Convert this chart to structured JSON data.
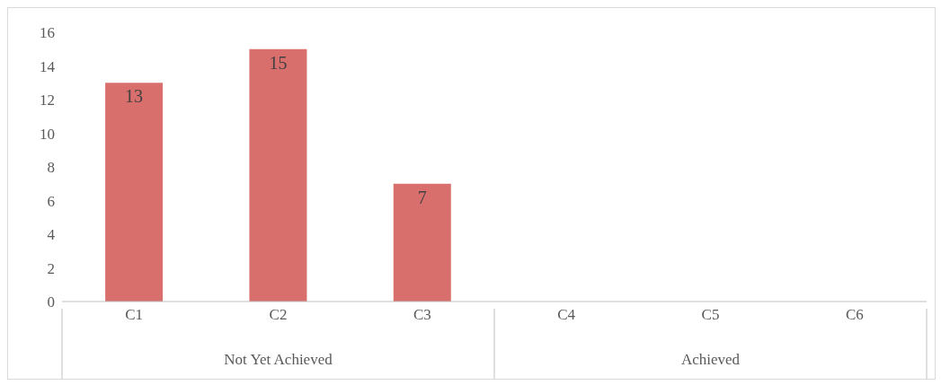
{
  "chart_data": {
    "type": "bar",
    "categories": [
      "C1",
      "C2",
      "C3",
      "C4",
      "C5",
      "C6"
    ],
    "values": [
      13,
      15,
      7,
      null,
      null,
      null
    ],
    "color": "#d96f6c",
    "ylim": [
      0,
      16
    ],
    "yticks": [
      0,
      2,
      4,
      6,
      8,
      10,
      12,
      14,
      16
    ],
    "data_labels": true,
    "annotations": [
      "Not Yet Achieved",
      "Achieved"
    ]
  }
}
